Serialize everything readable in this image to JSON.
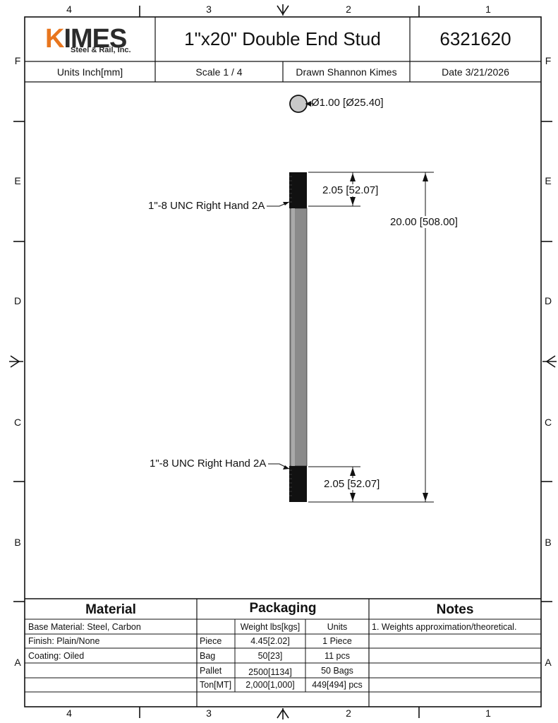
{
  "zones": {
    "top_cols": [
      "4",
      "3",
      "2",
      "1"
    ],
    "bottom_cols": [
      "4",
      "3",
      "2",
      "1"
    ],
    "rows": [
      "F",
      "E",
      "D",
      "C",
      "B",
      "A"
    ]
  },
  "title_block": {
    "logo": {
      "brand": "KIMES",
      "subtitle": "Steel & Rail, Inc.",
      "brand_color": "#e8761e"
    },
    "title": "1\"x20\" Double End Stud",
    "part_number": "6321620",
    "units": "Units Inch[mm]",
    "scale": "Scale 1 / 4",
    "drawn": "Drawn Shannon Kimes",
    "date": "Date 3/21/2026"
  },
  "drawing": {
    "diameter_label": "Ø1.00 [Ø25.40]",
    "thread_top_label": "1\"-8 UNC Right Hand 2A",
    "thread_bottom_label": "1\"-8 UNC Right Hand 2A",
    "thread_top_length": "2.05 [52.07]",
    "thread_bottom_length": "2.05 [52.07]",
    "overall_length": "20.00 [508.00]"
  },
  "material": {
    "header": "Material",
    "rows": [
      "Base Material: Steel, Carbon",
      "Finish: Plain/None",
      "Coating: Oiled",
      "",
      ""
    ]
  },
  "packaging": {
    "header": "Packaging",
    "columns": [
      "",
      "Weight lbs[kgs]",
      "Units"
    ],
    "rows": [
      {
        "label": "Piece",
        "weight": "4.45[2.02]",
        "units": "1 Piece"
      },
      {
        "label": "Bag",
        "weight": "50[23]",
        "units": "11 pcs"
      },
      {
        "label": "Pallet",
        "weight": "2500[1134]",
        "units": "50 Bags"
      },
      {
        "label": "Ton[MT]",
        "weight": "2,000[1,000]",
        "units": "449[494] pcs"
      }
    ]
  },
  "notes": {
    "header": "Notes",
    "rows": [
      "1. Weights approximation/theoretical.",
      "",
      "",
      "",
      ""
    ]
  },
  "colors": {
    "line": "#111111",
    "thread": "#111111",
    "shank": "#8a8a8a",
    "logo_orange": "#e8761e"
  }
}
